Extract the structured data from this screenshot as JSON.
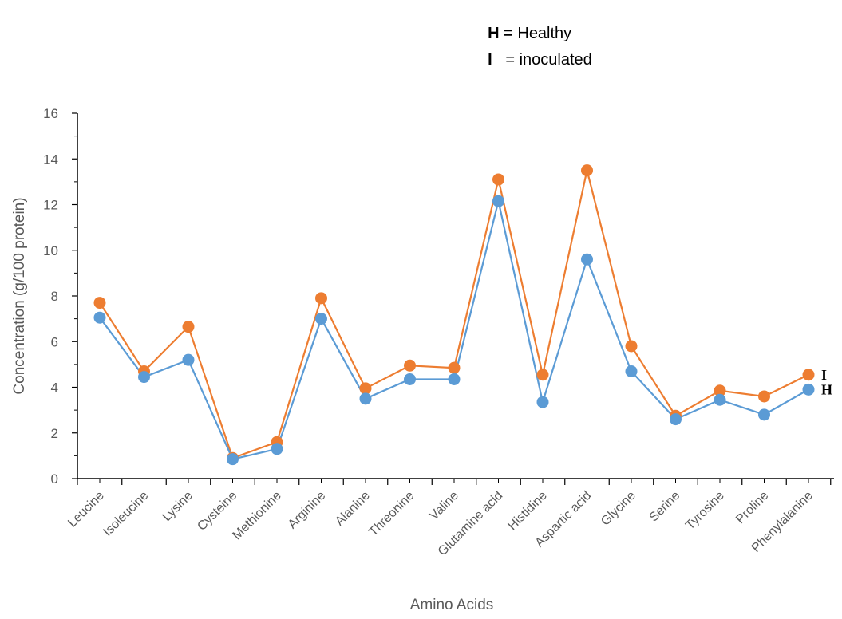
{
  "legend": {
    "items": [
      {
        "key": "H =",
        "text": " Healthy"
      },
      {
        "key": "I",
        "text": "   = inoculated"
      }
    ]
  },
  "chart_data": {
    "type": "line",
    "xlabel": "Amino Acids",
    "ylabel": "Concentration (g/100 protein)",
    "ylim": [
      0,
      16
    ],
    "yticks": [
      0,
      2,
      4,
      6,
      8,
      10,
      12,
      14,
      16
    ],
    "grid": false,
    "categories": [
      "Leucine",
      "Isoleucine",
      "Lysine",
      "Cysteine",
      "Methionine",
      "Arginine",
      "Alanine",
      "Threonine",
      "Valine",
      "Glutamine acid",
      "Histidine",
      "Aspartic acid",
      "Glycine",
      "Serine",
      "Tyrosine",
      "Proline",
      "Phenylalanine"
    ],
    "series": [
      {
        "name": "H",
        "color": "#5B9BD5",
        "values": [
          7.05,
          4.45,
          5.2,
          0.85,
          1.3,
          7.0,
          3.5,
          4.35,
          4.35,
          12.15,
          3.35,
          9.6,
          4.7,
          2.6,
          3.45,
          2.8,
          3.9
        ]
      },
      {
        "name": "I",
        "color": "#ED7D31",
        "values": [
          7.7,
          4.7,
          6.65,
          0.9,
          1.6,
          7.9,
          3.95,
          4.95,
          4.85,
          13.1,
          4.55,
          13.5,
          5.8,
          2.75,
          3.85,
          3.6,
          4.55
        ]
      }
    ]
  }
}
